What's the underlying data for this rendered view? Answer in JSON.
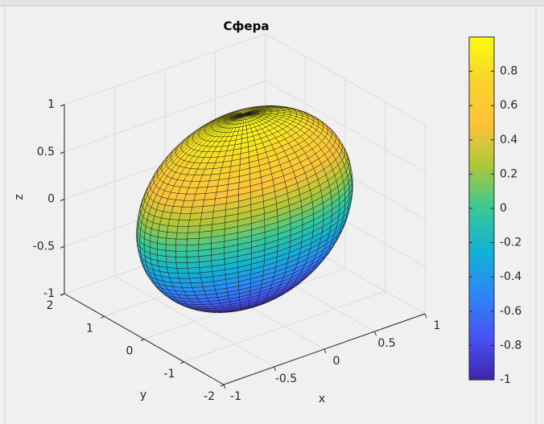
{
  "chart_data": {
    "type": "surface",
    "title": "Сфера",
    "xlabel": "x",
    "ylabel": "y",
    "zlabel": "z",
    "xlim": [
      -1,
      1
    ],
    "xticks": [
      -1,
      -0.5,
      0,
      0.5,
      1
    ],
    "ylim": [
      -2,
      2
    ],
    "yticks": [
      -2,
      -1,
      0,
      1,
      2
    ],
    "zlim": [
      -1,
      1
    ],
    "zticks": [
      -1,
      -0.5,
      0,
      0.5,
      1
    ],
    "grid": true,
    "colormap": "parula",
    "colorbar": {
      "clim": [
        -1,
        1
      ],
      "ticks": [
        -1,
        -0.8,
        -0.6,
        -0.4,
        -0.2,
        0,
        0.2,
        0.4,
        0.6,
        0.8
      ]
    }
  }
}
